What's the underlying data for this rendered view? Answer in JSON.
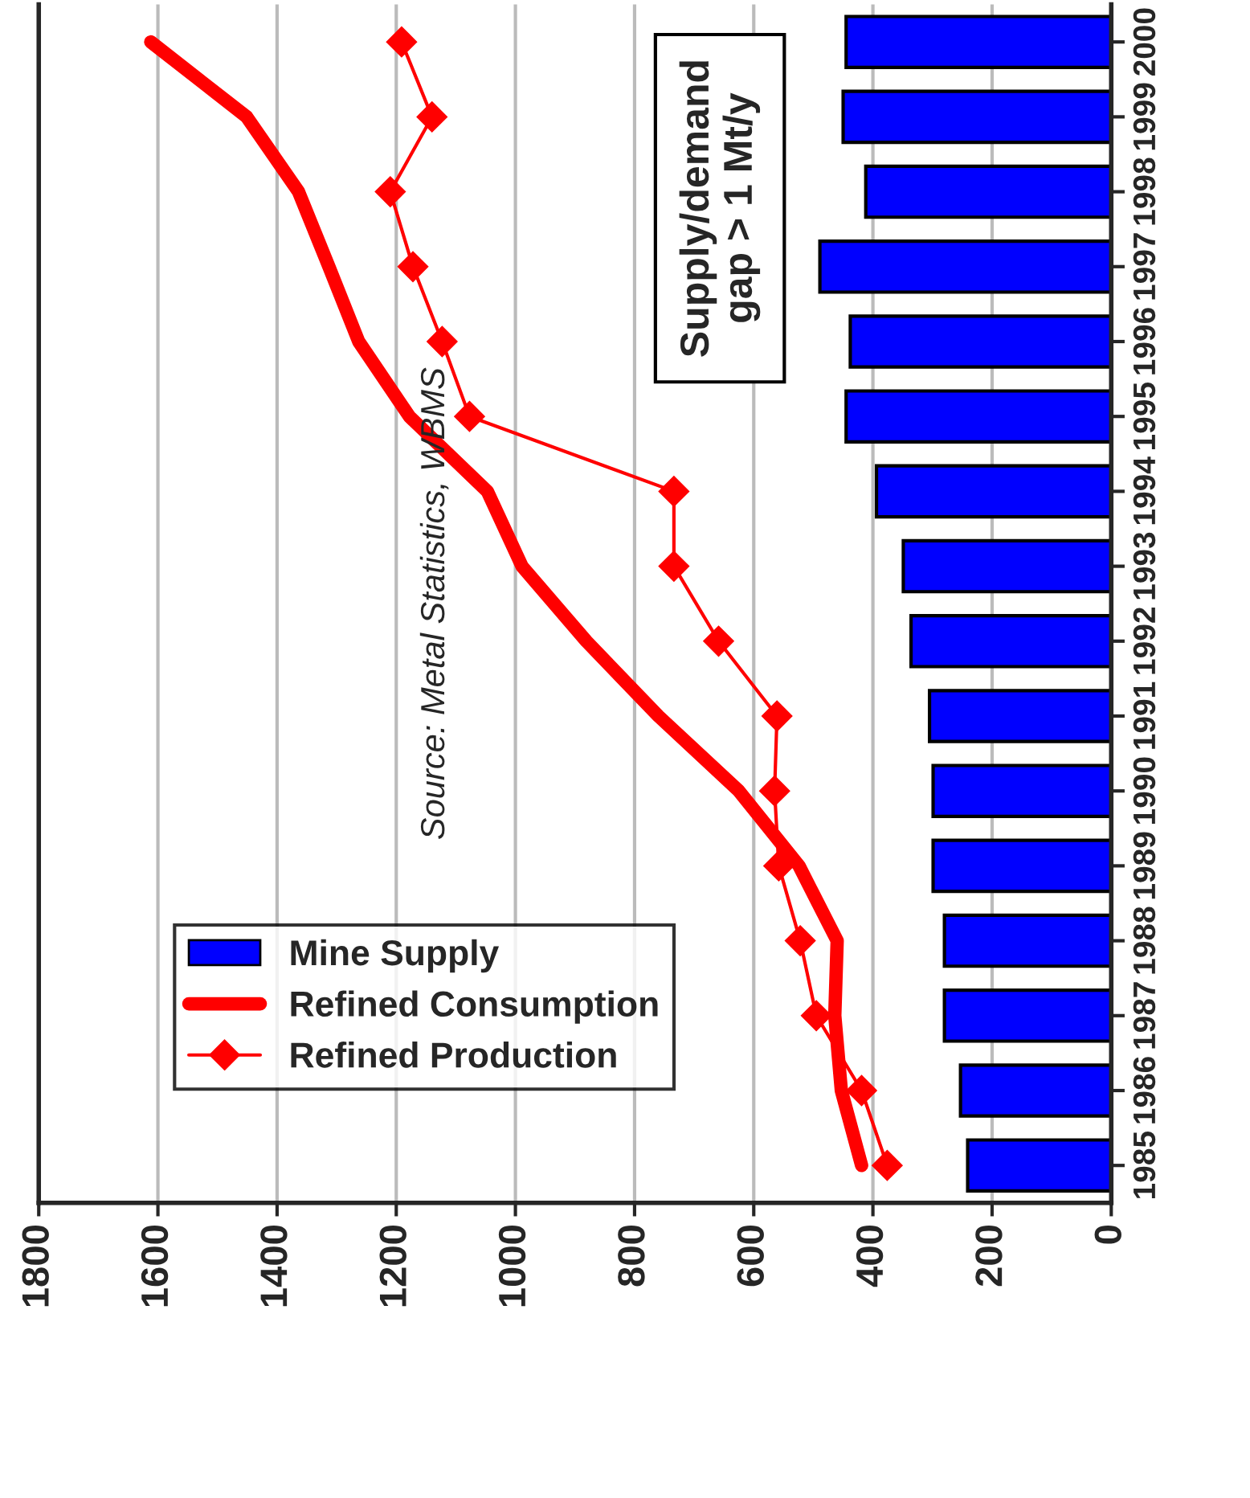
{
  "chart_data": {
    "type": "bar",
    "orientation": "horizontal",
    "categories": [
      "2000",
      "1999",
      "1998",
      "1997",
      "1996",
      "1995",
      "1994",
      "1993",
      "1992",
      "1991",
      "1990",
      "1989",
      "1988",
      "1987",
      "1986",
      "1985"
    ],
    "series": [
      {
        "name": "Mine Supply",
        "color": "#0000ff",
        "values": [
          445,
          450,
          412,
          489,
          438,
          445,
          394,
          349,
          336,
          305,
          299,
          299,
          280,
          280,
          253,
          241
        ]
      },
      {
        "name": "Refined Consumption",
        "type": "line",
        "color": "#ff0000",
        "marker": "none",
        "values": [
          1612,
          1451,
          1364,
          1313,
          1263,
          1178,
          1047,
          989,
          881,
          760,
          625,
          524,
          460,
          464,
          453,
          419
        ]
      },
      {
        "name": "Refined Production",
        "type": "line",
        "color": "#ff0000",
        "marker": "diamond",
        "values": [
          1191,
          1140,
          1210,
          1172,
          1123,
          1077,
          734,
          734,
          659,
          561,
          565,
          558,
          522,
          495,
          419,
          376
        ]
      }
    ],
    "xlim": [
      1800,
      0
    ],
    "xticks": [
      0,
      200,
      400,
      600,
      800,
      1000,
      1200,
      1400,
      1600,
      1800
    ],
    "grid": "x",
    "legend": "bottom left",
    "annotations": [
      "Supply/demand\ngap > 1 Mt/y",
      "Source: Metal Statistics, WBMS"
    ]
  }
}
